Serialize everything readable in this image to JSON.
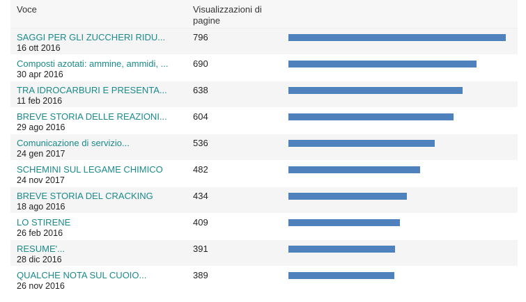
{
  "header": {
    "col_item": "Voce",
    "col_views": "Visualizzazioni di pagine"
  },
  "colors": {
    "link": "#1a8a8a",
    "bar": "#4f81bd"
  },
  "max_views": 796,
  "rows": [
    {
      "title": "SAGGI PER GLI ZUCCHERI RIDU...",
      "date": "16 ott 2016",
      "views": "796",
      "value": 796
    },
    {
      "title": "Composti azotati: ammine, ammidi, ...",
      "date": "30 apr 2016",
      "views": "690",
      "value": 690
    },
    {
      "title": "TRA IDROCARBURI E PRESENTA...",
      "date": "11 feb 2016",
      "views": "638",
      "value": 638
    },
    {
      "title": "BREVE STORIA DELLE REAZIONI...",
      "date": "29 ago 2016",
      "views": "604",
      "value": 604
    },
    {
      "title": "Comunicazione di servizio...",
      "date": "24 gen 2017",
      "views": "536",
      "value": 536
    },
    {
      "title": "SCHEMINI SUL LEGAME CHIMICO",
      "date": "24 nov 2017",
      "views": "482",
      "value": 482
    },
    {
      "title": "BREVE STORIA DEL CRACKING",
      "date": "18 ago 2016",
      "views": "434",
      "value": 434
    },
    {
      "title": "LO STIRENE",
      "date": "26 feb 2016",
      "views": "409",
      "value": 409
    },
    {
      "title": "RESUME'...",
      "date": "28 dic 2016",
      "views": "391",
      "value": 391
    },
    {
      "title": "QUALCHE NOTA SUL CUOIO...",
      "date": "26 nov 2016",
      "views": "389",
      "value": 389
    }
  ]
}
